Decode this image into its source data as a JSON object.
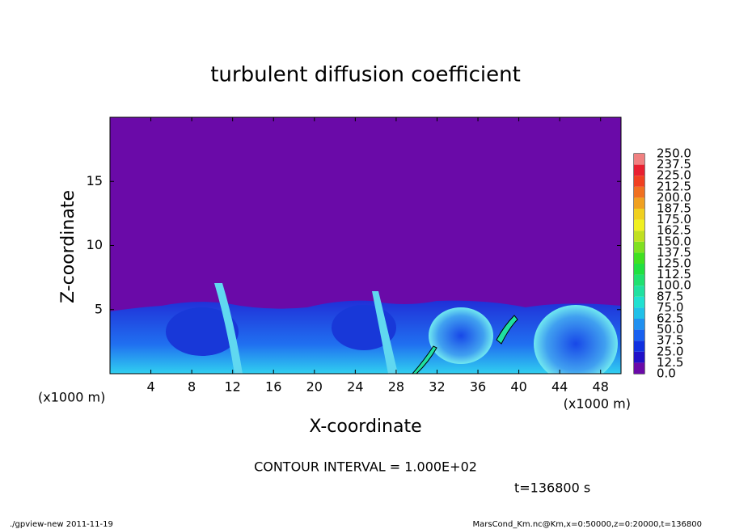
{
  "chart_data": {
    "type": "contour",
    "title": "turbulent diffusion coefficient",
    "xlabel": "X-coordinate",
    "ylabel": "Z-coordinate",
    "x_unit": "(x1000 m)",
    "y_unit": "(x1000 m)",
    "xlim": [
      0,
      50
    ],
    "xticks": [
      4,
      8,
      12,
      16,
      20,
      24,
      28,
      32,
      36,
      40,
      44,
      48
    ],
    "ylim": [
      0,
      20
    ],
    "yticks": [
      5,
      10,
      15
    ],
    "colorbar": {
      "levels": [
        {
          "value": 0,
          "label": "0.0"
        },
        12.5,
        {
          "value": 25,
          "label": "25.0"
        },
        37.5,
        {
          "value": 50,
          "label": "50.0"
        },
        62.5,
        {
          "value": 75,
          "label": "75.0"
        },
        87.5,
        {
          "value": 100,
          "label": "100.0"
        },
        112.5,
        {
          "value": 125,
          "label": "125.0"
        },
        137.5,
        {
          "value": 150,
          "label": "150.0"
        },
        162.5,
        {
          "value": 175,
          "label": "175.0"
        },
        187.5,
        {
          "value": 200,
          "label": "200.0"
        },
        212.5,
        {
          "value": 225,
          "label": "225.0"
        },
        237.5,
        {
          "value": 250,
          "label": "250.0"
        }
      ],
      "colors": [
        "#6a0aa8",
        "#2010c8",
        "#1030e0",
        "#1860f0",
        "#2090f0",
        "#20c0e8",
        "#20e0d0",
        "#20e0a0",
        "#20e070",
        "#20e040",
        "#40e020",
        "#80e020",
        "#c0e020",
        "#f0f020",
        "#f0d020",
        "#f0a020",
        "#f07020",
        "#f04020",
        "#e82030",
        "#f08080"
      ]
    },
    "annotation": "CONTOUR INTERVAL = 1.000E+02",
    "time_label": "t=136800 s",
    "footer_left": "./gpview-new  2011-11-19",
    "footer_right": "MarsCond_Km.nc@Km,x=0:50000,z=0:20000,t=136800"
  }
}
